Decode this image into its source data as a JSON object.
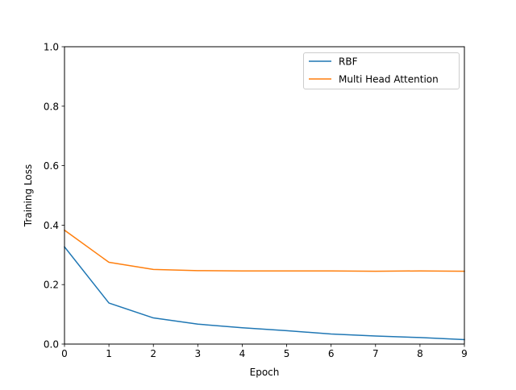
{
  "chart_data": {
    "type": "line",
    "title": "",
    "xlabel": "Epoch",
    "ylabel": "Training Loss",
    "xlim": [
      0,
      9
    ],
    "ylim": [
      0.0,
      1.0
    ],
    "xticks": [
      "0",
      "1",
      "2",
      "3",
      "4",
      "5",
      "6",
      "7",
      "8",
      "9"
    ],
    "yticks": [
      "0.0",
      "0.2",
      "0.4",
      "0.6",
      "0.8",
      "1.0"
    ],
    "grid": false,
    "legend_position": "top-right",
    "x": [
      0,
      1,
      2,
      3,
      4,
      5,
      6,
      7,
      8,
      9
    ],
    "series": [
      {
        "name": "RBF",
        "color": "#1f77b4",
        "values": [
          0.327,
          0.138,
          0.088,
          0.067,
          0.055,
          0.045,
          0.034,
          0.027,
          0.022,
          0.015
        ]
      },
      {
        "name": "Multi Head Attention",
        "color": "#ff7f0e",
        "values": [
          0.383,
          0.275,
          0.251,
          0.247,
          0.246,
          0.246,
          0.246,
          0.245,
          0.246,
          0.245
        ]
      }
    ]
  }
}
